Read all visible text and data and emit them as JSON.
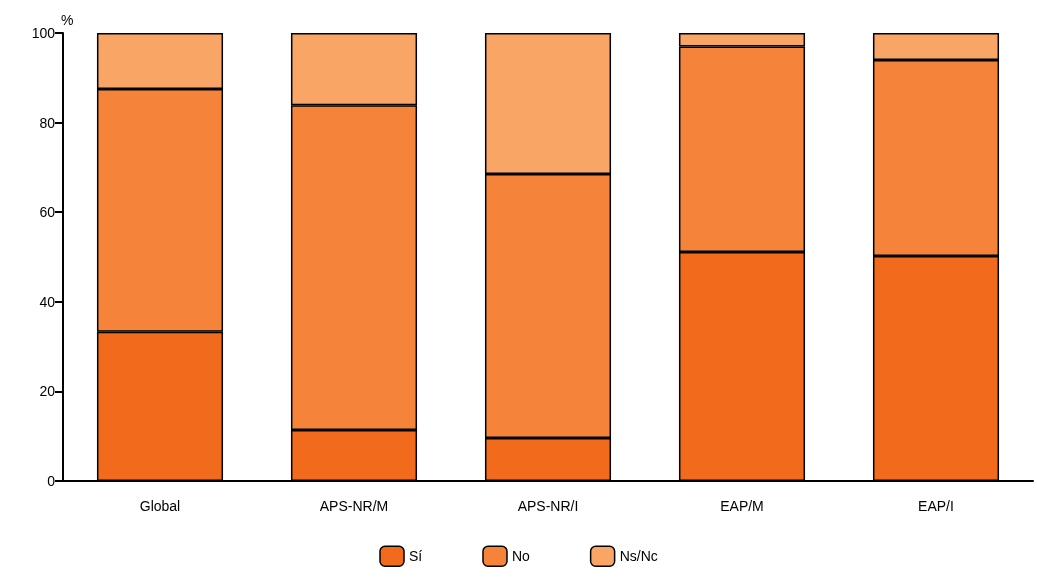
{
  "chart_data": {
    "type": "bar",
    "stacked": true,
    "ylabel": "%",
    "categories": [
      "Global",
      "APS-NR/M",
      "APS-NR/I",
      "EAP/M",
      "EAP/I"
    ],
    "series": [
      {
        "name": "Sí",
        "color": "#f26a1b",
        "values": [
          33.3,
          11.4,
          9.6,
          51.1,
          50.2
        ]
      },
      {
        "name": "No",
        "color": "#f5843a",
        "values": [
          54.2,
          72.5,
          58.9,
          45.9,
          43.8
        ]
      },
      {
        "name": "Ns/Nc",
        "color": "#f9a565",
        "values": [
          12.5,
          16.1,
          31.5,
          3,
          6
        ]
      }
    ],
    "ylim": [
      0,
      100
    ],
    "yticks": [
      0,
      20,
      40,
      60,
      80,
      100
    ],
    "grid": false,
    "legend": "bottom"
  }
}
